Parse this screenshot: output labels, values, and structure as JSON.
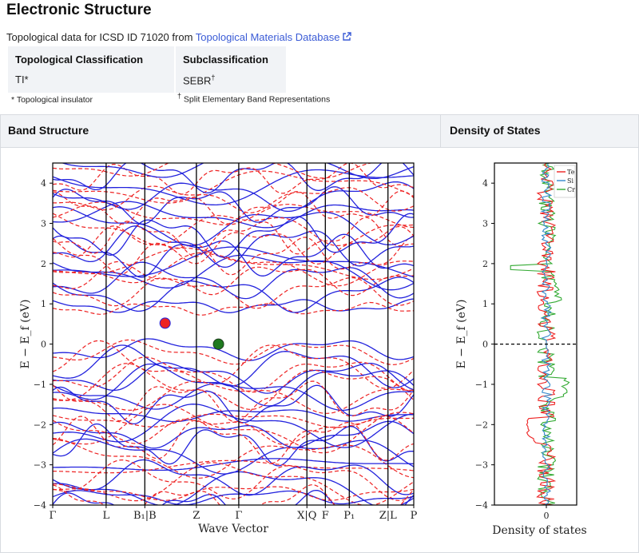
{
  "header": {
    "title": "Electronic Structure"
  },
  "topological": {
    "intro": "Topological data for ICSD ID 71020 from ",
    "link_label": "Topological Materials Database",
    "classification_header": "Topological Classification",
    "classification_value": "TI*",
    "subclassification_header": "Subclassification",
    "subclassification_value": "SEBR",
    "subclassification_mark": "†",
    "footnote_ti": "* Topological insulator",
    "footnote_sebr_mark": "†",
    "footnote_sebr": " Split Elementary Band Representations"
  },
  "panels": {
    "band_title": "Band Structure",
    "dos_title": "Density of States"
  },
  "colors": {
    "blue": "#2222dd",
    "red": "#ee2222",
    "green": "#33aa33",
    "link": "#3a5bd6"
  },
  "chart_data": [
    {
      "type": "line",
      "title": "",
      "xlabel": "Wave Vector",
      "ylabel": "E − E_f (eV)",
      "ylim": [
        -4,
        4.5
      ],
      "yticks": [
        -4,
        -3,
        -2,
        -1,
        0,
        1,
        2,
        3,
        4
      ],
      "kpath_labels": [
        "Γ",
        "L",
        "B₁|B",
        "Z",
        "Γ",
        "X|Q",
        "F",
        "P₁",
        "Z|L",
        "P"
      ],
      "kpath_positions": [
        0,
        1.45,
        2.5,
        3.9,
        5.05,
        6.9,
        7.4,
        8.05,
        9.1,
        9.8
      ],
      "series": [
        {
          "style": "solid",
          "color": "blue"
        },
        {
          "style": "dashed",
          "color": "red"
        }
      ],
      "markers": [
        {
          "name": "CBM",
          "color": "#ee2222",
          "x": 3.05,
          "y": 0.52
        },
        {
          "name": "VBM",
          "color": "#1f7a1f",
          "x": 4.5,
          "y": 0.0
        }
      ]
    },
    {
      "type": "line",
      "title": "",
      "xlabel": "Density of states",
      "ylabel": "E − E_f (eV)",
      "ylim": [
        -4,
        4.5
      ],
      "yticks": [
        -4,
        -3,
        -2,
        -1,
        0,
        1,
        2,
        3,
        4
      ],
      "xticks": [
        0
      ],
      "series": [
        {
          "name": "Te",
          "color": "#ee2222"
        },
        {
          "name": "Si",
          "color": "#3388cc"
        },
        {
          "name": "Cr",
          "color": "#33aa33"
        }
      ]
    }
  ]
}
